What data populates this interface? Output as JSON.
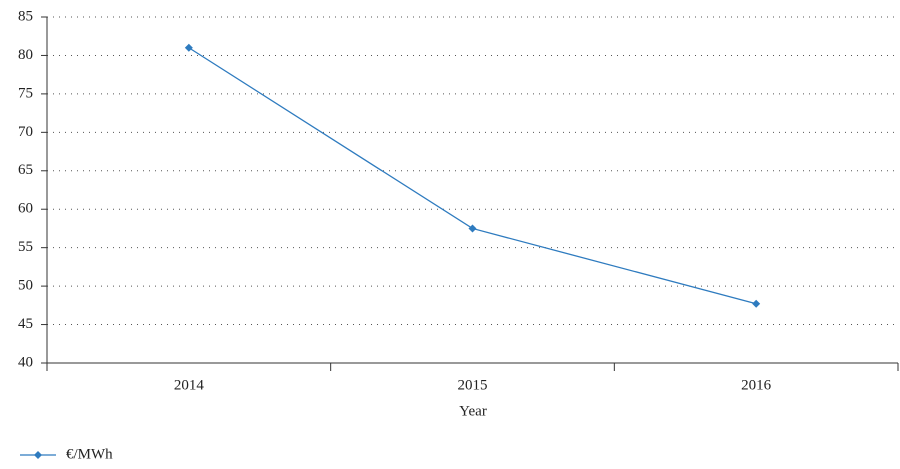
{
  "chart_data": {
    "type": "line",
    "x_label": "Year",
    "categories": [
      "2014",
      "2015",
      "2016"
    ],
    "series": [
      {
        "name": "€/MWh",
        "color": "#2e7bbf",
        "values": [
          81,
          57.5,
          47.7
        ]
      }
    ],
    "ylim": [
      40,
      85
    ],
    "yticks": [
      40,
      45,
      50,
      55,
      60,
      65,
      70,
      75,
      80,
      85
    ],
    "grid": true,
    "legend": "bottom-left"
  }
}
